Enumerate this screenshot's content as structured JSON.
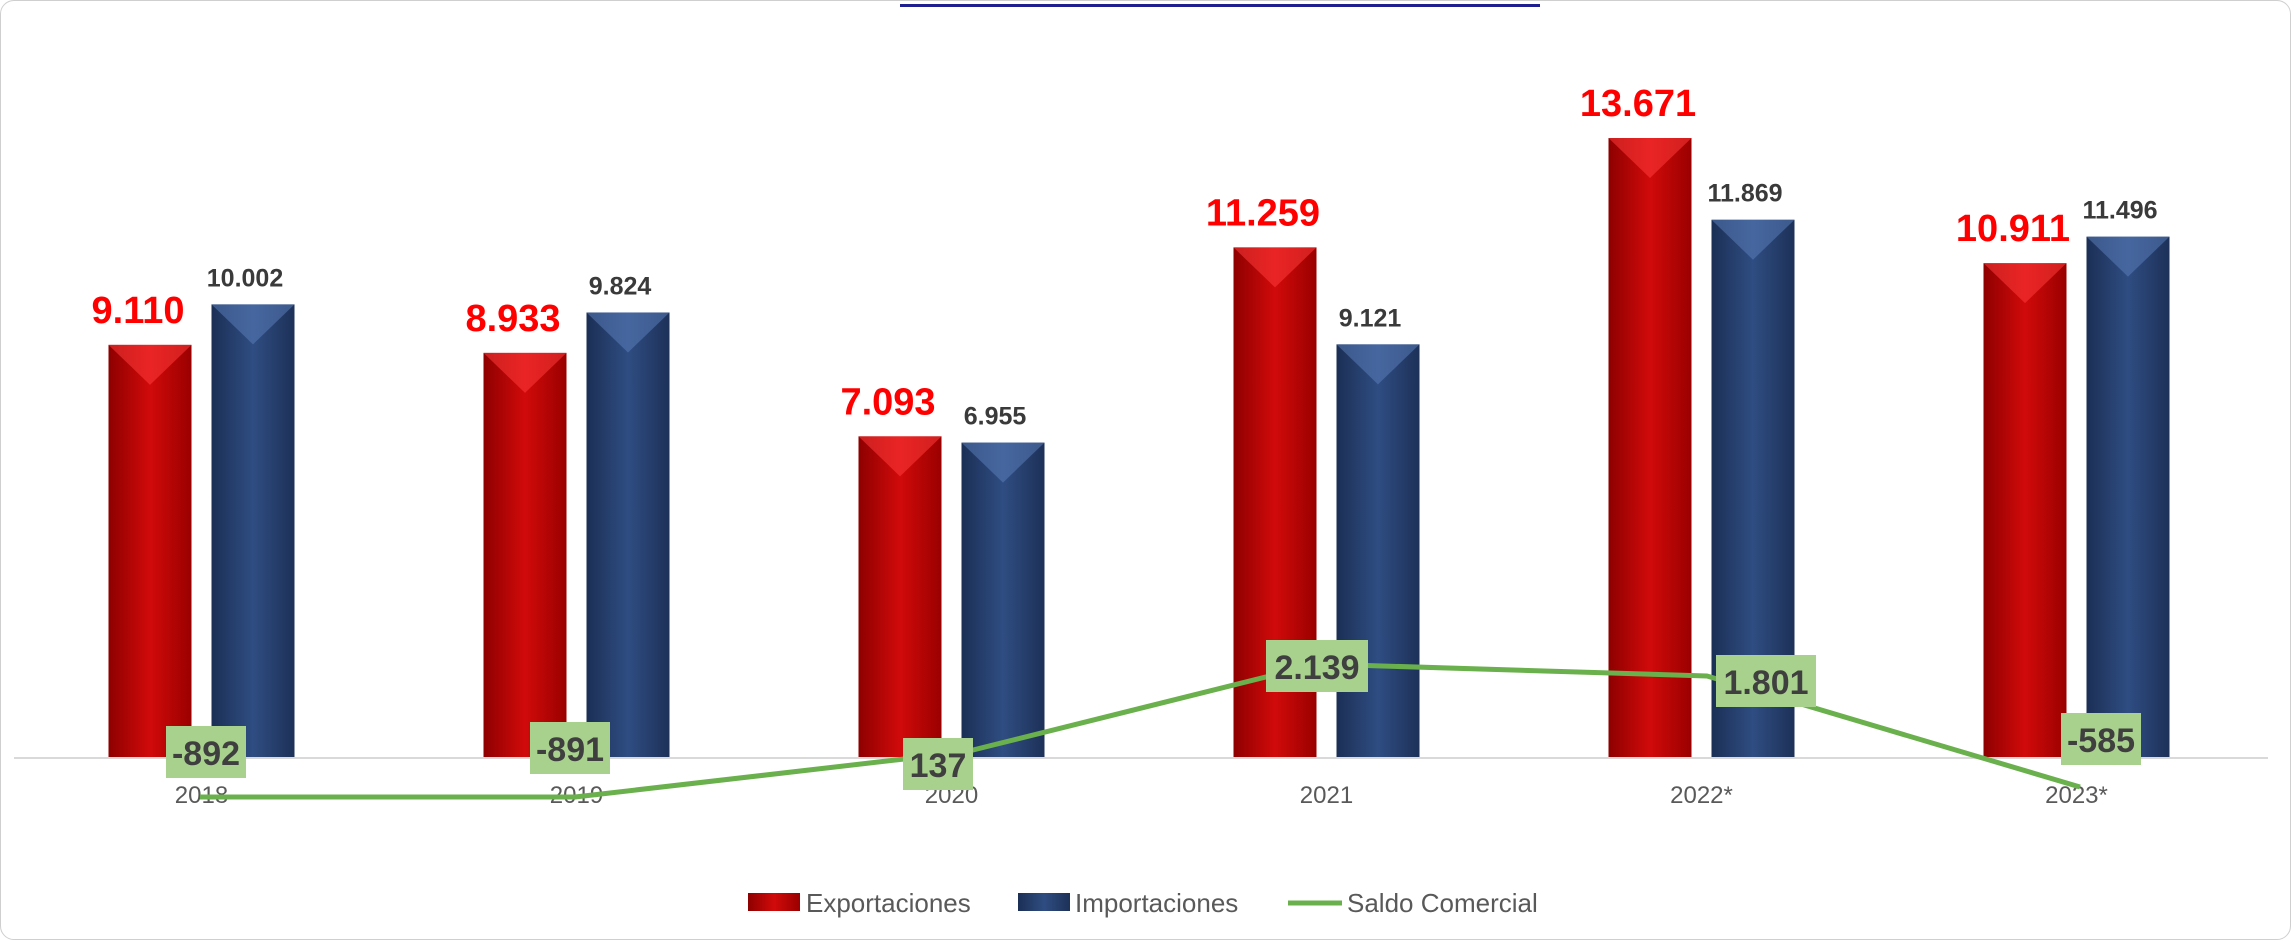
{
  "colors": {
    "exportaciones": "#c00000",
    "importaciones": "#263f6e",
    "saldo": "#6ab04c",
    "saldo_label_bg": "#a9d18e",
    "exp_label": "#ff0000"
  },
  "chart_data": {
    "type": "bar",
    "title": "",
    "xlabel": "",
    "ylabel": "",
    "categories": [
      "2018",
      "2019",
      "2020",
      "2021",
      "2022*",
      "2023*"
    ],
    "series": [
      {
        "name": "Exportaciones",
        "type": "bar",
        "values": [
          9110,
          8933,
          7093,
          11259,
          13671,
          10911
        ],
        "labels": [
          "9.110",
          "8.933",
          "7.093",
          "11.259",
          "13.671",
          "10.911"
        ]
      },
      {
        "name": "Importaciones",
        "type": "bar",
        "values": [
          10002,
          9824,
          6955,
          9121,
          11869,
          11496
        ],
        "labels": [
          "10.002",
          "9.824",
          "6.955",
          "9.121",
          "11.869",
          "11.496"
        ]
      },
      {
        "name": "Saldo Comercial",
        "type": "line",
        "values": [
          -892,
          -891,
          137,
          2139,
          1801,
          -585
        ],
        "labels": [
          "-892",
          "-891",
          "137",
          "2.139",
          "1.801",
          "-585"
        ]
      }
    ],
    "legend": {
      "position": "bottom",
      "items": [
        "Exportaciones",
        "Importaciones",
        "Saldo Comercial"
      ]
    },
    "grid": false
  }
}
